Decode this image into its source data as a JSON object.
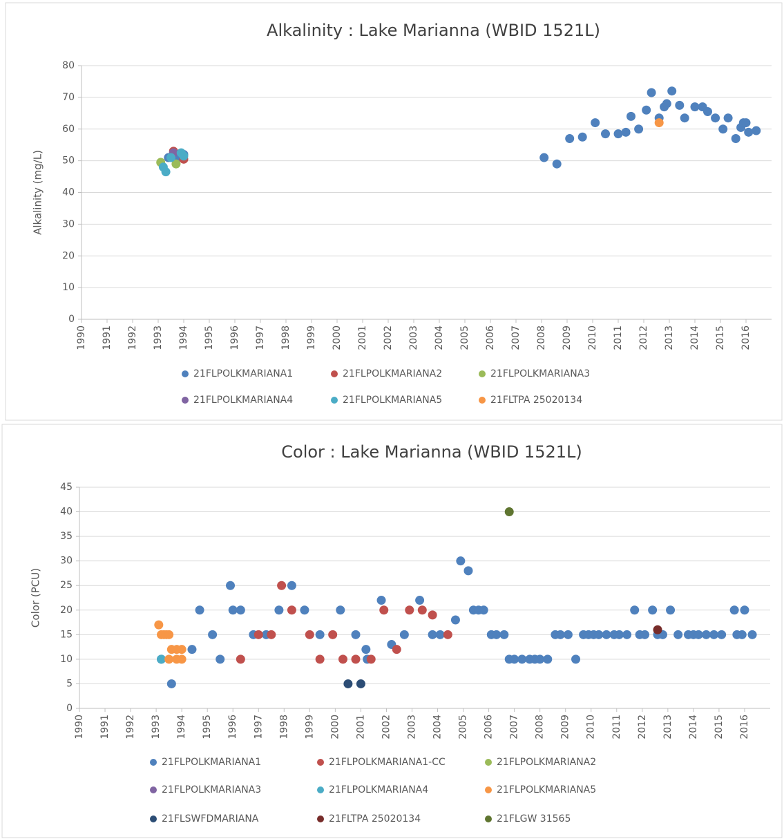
{
  "chart_data": [
    {
      "type": "scatter",
      "title": "Alkalinity : Lake Marianna (WBID 1521L)",
      "y_label": "Alkalinity (mg/L)",
      "xlim": [
        1990,
        2017
      ],
      "xticks": [
        1990,
        1991,
        1992,
        1993,
        1994,
        1995,
        1996,
        1997,
        1998,
        1999,
        2000,
        2001,
        2002,
        2003,
        2004,
        2005,
        2006,
        2007,
        2008,
        2009,
        2010,
        2011,
        2012,
        2013,
        2014,
        2015,
        2016
      ],
      "ylim": [
        0,
        80
      ],
      "yticks": [
        0,
        10,
        20,
        30,
        40,
        50,
        60,
        70,
        80
      ],
      "grid": true,
      "series": [
        {
          "name": "21FLPOLKMARIANA1",
          "color": "#4f81bd",
          "x": [
            1993.4,
            1993.6,
            1993.8,
            1994.0,
            2008.1,
            2008.6,
            2009.1,
            2009.6,
            2010.1,
            2010.5,
            2011.0,
            2011.3,
            2011.5,
            2011.8,
            2012.1,
            2012.3,
            2012.6,
            2012.8,
            2012.9,
            2013.1,
            2013.4,
            2013.6,
            2014.0,
            2014.3,
            2014.5,
            2014.8,
            2015.1,
            2015.3,
            2015.6,
            2015.8,
            2015.9,
            2016.0,
            2016.1,
            2016.4
          ],
          "values": [
            51,
            52,
            51,
            52,
            51,
            49,
            57,
            57.5,
            62,
            58.5,
            58.5,
            59,
            64,
            60,
            66,
            71.5,
            63.5,
            67,
            68,
            72,
            67.5,
            63.5,
            67,
            67,
            65.5,
            63.5,
            60,
            63.5,
            57,
            60.5,
            62,
            62,
            59,
            59.5
          ]
        },
        {
          "name": "21FLPOLKMARIANA2",
          "color": "#c0504d",
          "x": [
            1993.6,
            1994.0
          ],
          "values": [
            53,
            50.5
          ]
        },
        {
          "name": "21FLPOLKMARIANA3",
          "color": "#9bbb59",
          "x": [
            1993.1,
            1993.7
          ],
          "values": [
            49.5,
            49
          ]
        },
        {
          "name": "21FLPOLKMARIANA4",
          "color": "#8064a2",
          "x": [
            1993.6
          ],
          "values": [
            52.5
          ]
        },
        {
          "name": "21FLPOLKMARIANA5",
          "color": "#4bacc6",
          "x": [
            1993.2,
            1993.3,
            1993.5,
            1993.9,
            1994.0
          ],
          "values": [
            48,
            46.5,
            51,
            52.5,
            51.5
          ]
        },
        {
          "name": "21FLTPA 25020134",
          "color": "#f79646",
          "x": [
            2012.6
          ],
          "values": [
            62
          ]
        }
      ]
    },
    {
      "type": "scatter",
      "title": "Color : Lake Marianna (WBID 1521L)",
      "y_label": "Color (PCU)",
      "xlim": [
        1990,
        2017
      ],
      "xticks": [
        1990,
        1991,
        1992,
        1993,
        1994,
        1995,
        1996,
        1997,
        1998,
        1999,
        2000,
        2001,
        2002,
        2003,
        2004,
        2005,
        2006,
        2007,
        2008,
        2009,
        2010,
        2011,
        2012,
        2013,
        2014,
        2015,
        2016
      ],
      "ylim": [
        0,
        45
      ],
      "yticks": [
        0,
        5,
        10,
        15,
        20,
        25,
        30,
        35,
        40,
        45
      ],
      "grid": true,
      "series": [
        {
          "name": "21FLPOLKMARIANA1",
          "color": "#4f81bd",
          "x": [
            1993.2,
            1993.6,
            1994.4,
            1994.7,
            1995.2,
            1995.5,
            1995.9,
            1996.0,
            1996.3,
            1996.8,
            1997.3,
            1997.8,
            1998.3,
            1998.8,
            1999.4,
            2000.2,
            2000.8,
            2001.2,
            2001.25,
            2001.8,
            2002.2,
            2002.7,
            2003.3,
            2003.8,
            2004.1,
            2004.7,
            2004.9,
            2005.2,
            2005.4,
            2005.6,
            2005.8,
            2006.1,
            2006.3,
            2006.6,
            2006.8,
            2007.0,
            2007.3,
            2007.6,
            2007.8,
            2008.0,
            2008.3,
            2008.6,
            2008.8,
            2009.1,
            2009.4,
            2009.7,
            2009.9,
            2010.1,
            2010.3,
            2010.6,
            2010.9,
            2011.1,
            2011.4,
            2011.7,
            2011.9,
            2012.1,
            2012.4,
            2012.6,
            2012.8,
            2013.1,
            2013.4,
            2013.8,
            2014.0,
            2014.2,
            2014.5,
            2014.8,
            2015.1,
            2015.6,
            2015.7,
            2015.9,
            2016.0,
            2016.3
          ],
          "values": [
            10,
            5,
            12,
            20,
            15,
            10,
            25,
            20,
            20,
            15,
            15,
            20,
            25,
            20,
            15,
            20,
            15,
            12,
            10,
            22,
            13,
            15,
            22,
            15,
            15,
            18,
            30,
            28,
            20,
            20,
            20,
            15,
            15,
            15,
            10,
            10,
            10,
            10,
            10,
            10,
            10,
            15,
            15,
            15,
            10,
            15,
            15,
            15,
            15,
            15,
            15,
            15,
            15,
            20,
            15,
            15,
            20,
            15,
            15,
            20,
            15,
            15,
            15,
            15,
            15,
            15,
            15,
            20,
            15,
            15,
            20,
            15
          ]
        },
        {
          "name": "21FLPOLKMARIANA1-CC",
          "color": "#c0504d",
          "x": [
            1996.3,
            1997.0,
            1997.5,
            1997.9,
            1998.3,
            1999.0,
            1999.4,
            1999.9,
            2000.3,
            2000.8,
            2001.4,
            2001.9,
            2002.4,
            2002.9,
            2003.4,
            2003.8,
            2004.4
          ],
          "values": [
            10,
            15,
            15,
            25,
            20,
            15,
            10,
            15,
            10,
            10,
            10,
            20,
            12,
            20,
            20,
            19,
            15
          ]
        },
        {
          "name": "21FLPOLKMARIANA2",
          "color": "#9bbb59",
          "x": [],
          "values": []
        },
        {
          "name": "21FLPOLKMARIANA3",
          "color": "#8064a2",
          "x": [],
          "values": []
        },
        {
          "name": "21FLPOLKMARIANA4",
          "color": "#4bacc6",
          "x": [
            1993.2
          ],
          "values": [
            10
          ]
        },
        {
          "name": "21FLPOLKMARIANA5",
          "color": "#f79646",
          "x": [
            1993.1,
            1993.2,
            1993.3,
            1993.4,
            1993.5,
            1993.5,
            1993.6,
            1993.8,
            1993.8,
            1994.0,
            1994.0
          ],
          "values": [
            17,
            15,
            15,
            15,
            15,
            10,
            12,
            12,
            10,
            12,
            10
          ]
        },
        {
          "name": "21FLSWFDMARIANA",
          "color": "#2c4d75",
          "x": [
            2000.5,
            2001.0
          ],
          "values": [
            5,
            5
          ]
        },
        {
          "name": "21FLTPA 25020134",
          "color": "#772c2a",
          "x": [
            2012.6
          ],
          "values": [
            16
          ]
        },
        {
          "name": "21FLGW  31565",
          "color": "#5f7530",
          "x": [
            2006.8
          ],
          "values": [
            40
          ]
        }
      ]
    }
  ]
}
